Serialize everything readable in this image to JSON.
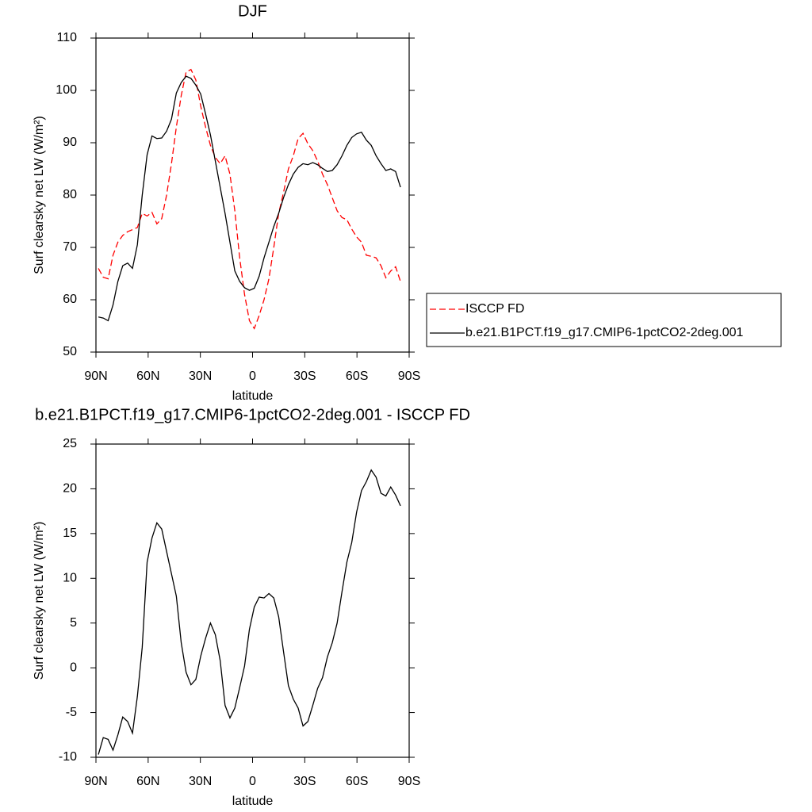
{
  "chart_data": [
    {
      "type": "line",
      "title": "DJF",
      "xlabel": "latitude",
      "ylabel": "Surf clearsky net LW (W/m²)",
      "x": [
        88.6,
        85.8,
        83.0,
        80.2,
        77.4,
        74.6,
        71.8,
        69.0,
        66.2,
        63.4,
        60.6,
        57.8,
        55.0,
        52.2,
        49.4,
        46.6,
        43.8,
        41.0,
        38.2,
        35.4,
        32.6,
        29.8,
        27.0,
        24.2,
        21.4,
        18.6,
        15.8,
        13.0,
        10.2,
        7.4,
        4.6,
        1.8,
        -1.0,
        -3.8,
        -6.6,
        -9.4,
        -12.2,
        -15.0,
        -17.8,
        -20.6,
        -23.4,
        -26.2,
        -29.0,
        -31.8,
        -34.6,
        -37.4,
        -40.2,
        -43.0,
        -45.8,
        -48.6,
        -51.4,
        -54.2,
        -57.0,
        -59.8,
        -62.6,
        -65.4,
        -68.2,
        -71.0,
        -73.8,
        -76.6,
        -79.4,
        -82.2,
        -85.0
      ],
      "xlim": [
        90,
        -90
      ],
      "xticks": [
        {
          "value": 90,
          "label": "90N"
        },
        {
          "value": 60,
          "label": "60N"
        },
        {
          "value": 30,
          "label": "30N"
        },
        0,
        {
          "value": -30,
          "label": "30S"
        },
        {
          "value": -60,
          "label": "60S"
        },
        {
          "value": -90,
          "label": "90S"
        }
      ],
      "ylim": [
        50,
        110
      ],
      "yticks": [
        50,
        60,
        70,
        80,
        90,
        100,
        110
      ],
      "legend": "outside right",
      "series": [
        {
          "name": "ISCCP FD",
          "color": "#ff0000",
          "dashed": true,
          "values": [
            66,
            64.3,
            64,
            68.5,
            71,
            72.3,
            73,
            73.4,
            73.8,
            76.5,
            76,
            76.7,
            74.5,
            75.5,
            80,
            86,
            93,
            99,
            103.5,
            104,
            102,
            97,
            93,
            89.5,
            87.2,
            86,
            87.5,
            84,
            77,
            68,
            61,
            56,
            54.5,
            57,
            60,
            64,
            70,
            76.5,
            80.5,
            85,
            87.5,
            90.8,
            91.8,
            89.8,
            88.5,
            86.5,
            84,
            82,
            79.5,
            77,
            75.7,
            75.3,
            73.5,
            72,
            71,
            68.5,
            68.3,
            68,
            66.5,
            64.2,
            65.5,
            66.3,
            63.5
          ]
        },
        {
          "name": "b.e21.B1PCT.f19_g17.CMIP6-1pctCO2-2deg.001",
          "color": "#000000",
          "dashed": false,
          "values": [
            56.7,
            56.5,
            56,
            59,
            63.5,
            66.5,
            67,
            66,
            70.5,
            80,
            87.7,
            91.3,
            90.8,
            90.9,
            92.2,
            94.5,
            99.5,
            101.5,
            102.7,
            102.3,
            101,
            99.3,
            95.5,
            91.5,
            86.5,
            81.5,
            76.5,
            71,
            65.5,
            63.5,
            62.3,
            61.8,
            62.2,
            64.5,
            68,
            71,
            74,
            76.5,
            79.5,
            82,
            84,
            85.3,
            86,
            85.8,
            86.2,
            85.8,
            85.1,
            84.5,
            84.7,
            85.8,
            87.5,
            89.5,
            91,
            91.7,
            92,
            90.5,
            89.5,
            87.5,
            86,
            84.7,
            85,
            84.5,
            81.5
          ]
        }
      ]
    },
    {
      "type": "line",
      "title": "b.e21.B1PCT.f19_g17.CMIP6-1pctCO2-2deg.001 - ISCCP FD",
      "xlabel": "latitude",
      "ylabel": "Surf clearsky net LW (W/m²)",
      "x": [
        88.6,
        85.8,
        83.0,
        80.2,
        77.4,
        74.6,
        71.8,
        69.0,
        66.2,
        63.4,
        60.6,
        57.8,
        55.0,
        52.2,
        49.4,
        46.6,
        43.8,
        41.0,
        38.2,
        35.4,
        32.6,
        29.8,
        27.0,
        24.2,
        21.4,
        18.6,
        15.8,
        13.0,
        10.2,
        7.4,
        4.6,
        1.8,
        -1.0,
        -3.8,
        -6.6,
        -9.4,
        -12.2,
        -15.0,
        -17.8,
        -20.6,
        -23.4,
        -26.2,
        -29.0,
        -31.8,
        -34.6,
        -37.4,
        -40.2,
        -43.0,
        -45.8,
        -48.6,
        -51.4,
        -54.2,
        -57.0,
        -59.8,
        -62.6,
        -65.4,
        -68.2,
        -71.0,
        -73.8,
        -76.6,
        -79.4,
        -82.2,
        -85.0
      ],
      "xlim": [
        90,
        -90
      ],
      "xticks": [
        {
          "value": 90,
          "label": "90N"
        },
        {
          "value": 60,
          "label": "60N"
        },
        {
          "value": 30,
          "label": "30N"
        },
        0,
        {
          "value": -30,
          "label": "30S"
        },
        {
          "value": -60,
          "label": "60S"
        },
        {
          "value": -90,
          "label": "90S"
        }
      ],
      "ylim": [
        -10,
        25
      ],
      "yticks": [
        -10,
        -5,
        0,
        5,
        10,
        15,
        20,
        25
      ],
      "series": [
        {
          "color": "#000000",
          "dashed": false,
          "values": [
            -9.7,
            -7.8,
            -8,
            -9.2,
            -7.5,
            -5.5,
            -6,
            -7.3,
            -3.2,
            2.3,
            11.8,
            14.5,
            16.2,
            15.5,
            13,
            10.5,
            8,
            2.8,
            -0.5,
            -1.9,
            -1.3,
            1.3,
            3.3,
            5,
            3.7,
            0.8,
            -4.2,
            -5.6,
            -4.5,
            -2.2,
            0.2,
            4.3,
            6.8,
            7.9,
            7.8,
            8.3,
            7.8,
            5.7,
            1.8,
            -2,
            -3.5,
            -4.5,
            -6.5,
            -6,
            -4.2,
            -2.3,
            -1.1,
            1.2,
            2.8,
            5,
            8.5,
            11.8,
            14,
            17.4,
            19.8,
            20.8,
            22.1,
            21.3,
            19.5,
            19.2,
            20.2,
            19.3,
            18.1
          ]
        }
      ]
    }
  ]
}
